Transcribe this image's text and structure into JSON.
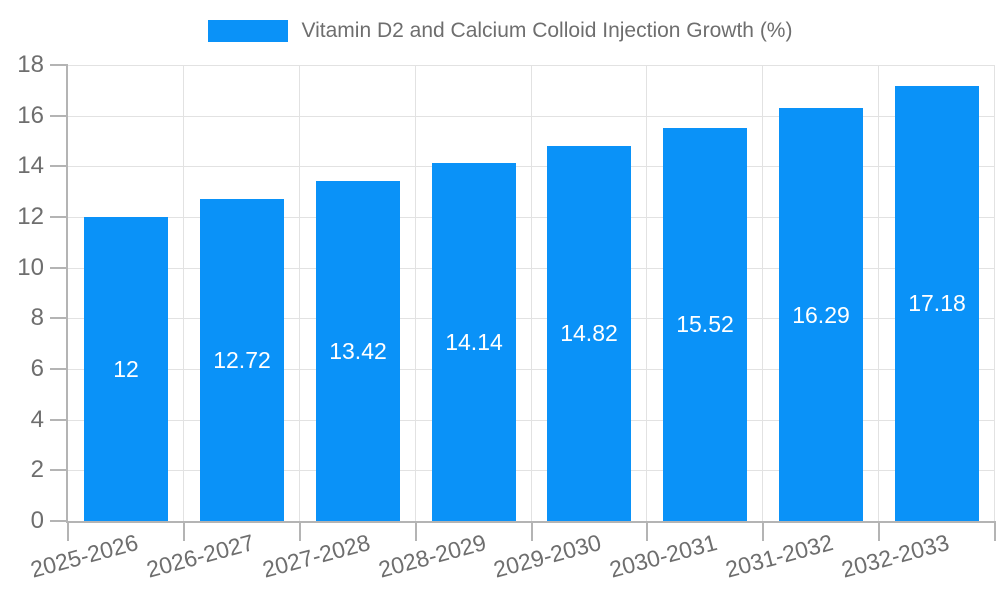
{
  "chart_data": {
    "type": "bar",
    "title": "Vitamin D2 and Calcium Colloid Injection Growth (%)",
    "categories": [
      "2025-2026",
      "2026-2027",
      "2027-2028",
      "2028-2029",
      "2029-2030",
      "2030-2031",
      "2031-2032",
      "2032-2033"
    ],
    "values": [
      12,
      12.72,
      13.42,
      14.14,
      14.82,
      15.52,
      16.29,
      17.18
    ],
    "value_labels": [
      "12",
      "12.72",
      "13.42",
      "14.14",
      "14.82",
      "15.52",
      "16.29",
      "17.18"
    ],
    "xlabel": "",
    "ylabel": "",
    "ylim": [
      0,
      18
    ],
    "ytick_step": 2,
    "grid": "on",
    "legend_position": "top-center",
    "colors": {
      "bar": "#0a92f8",
      "bar_label": "#ffffff",
      "grid": "#e2e2e2",
      "axis": "#b4b4b4",
      "tick": "#b4b4b4",
      "text": "#6e6e6e",
      "background": "#ffffff"
    }
  }
}
